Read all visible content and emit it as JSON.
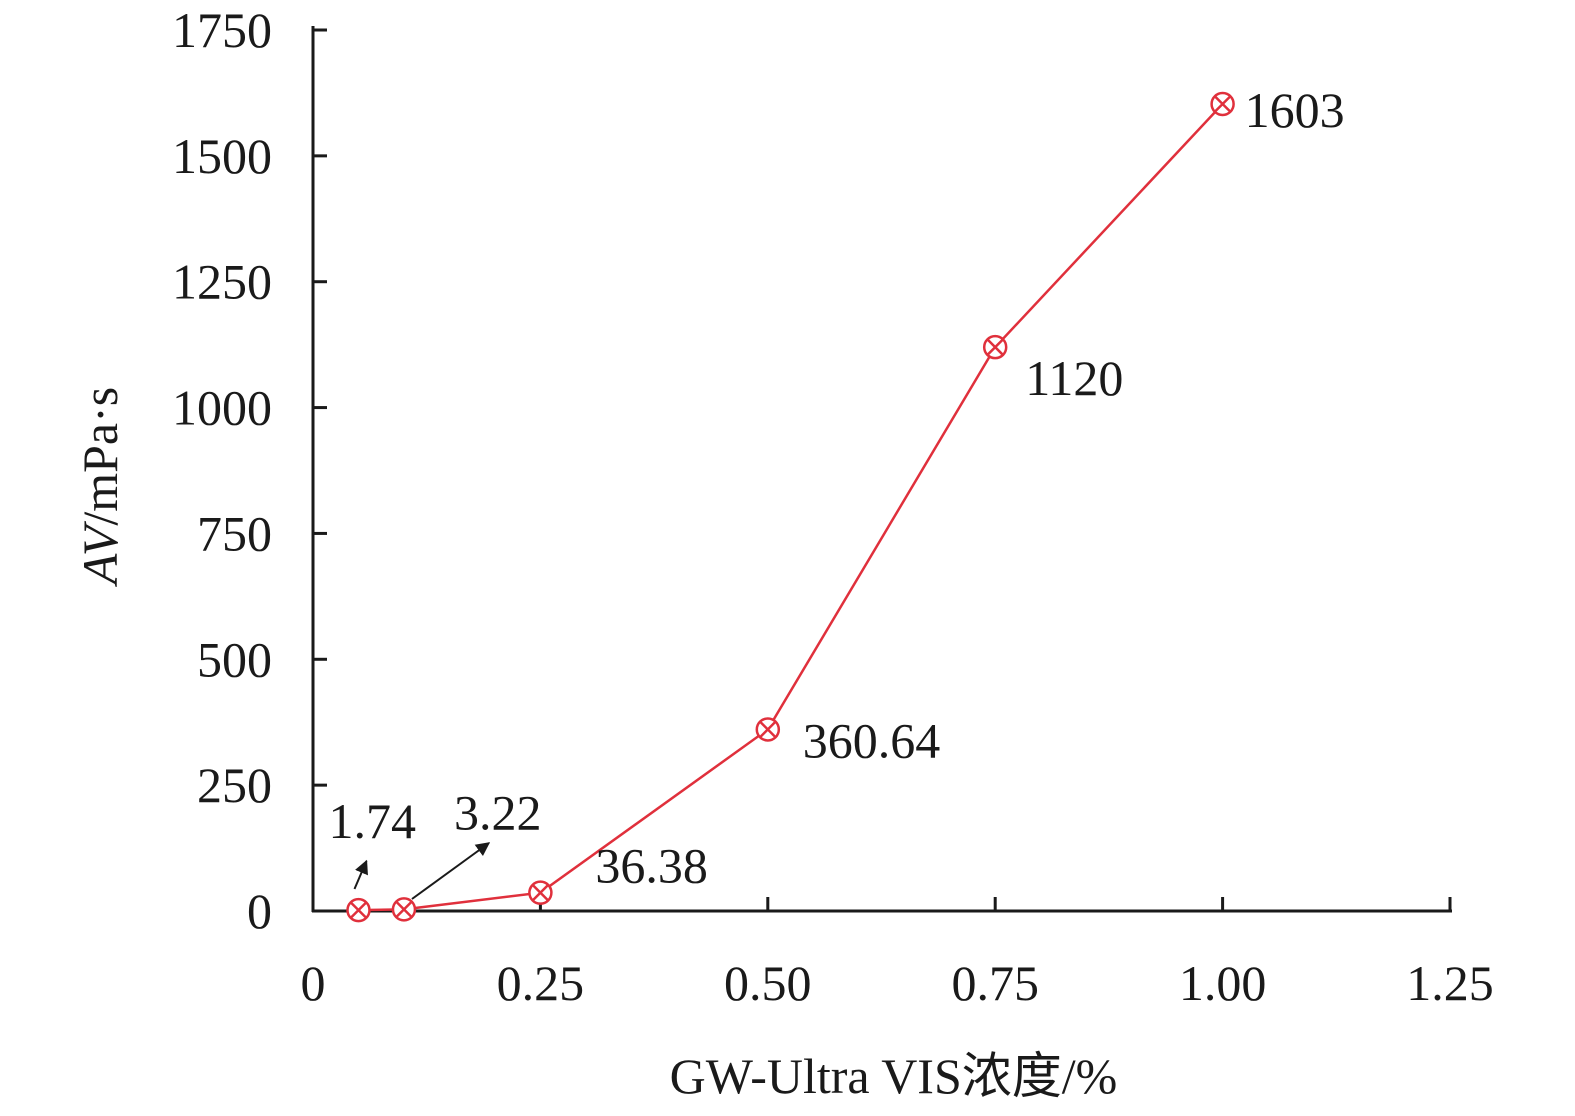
{
  "chart_data": {
    "type": "line",
    "x": [
      0.05,
      0.1,
      0.25,
      0.5,
      0.75,
      1.0
    ],
    "series": [
      {
        "values": [
          1.74,
          3.22,
          36.38,
          360.64,
          1120,
          1603
        ],
        "color": "#e0303c",
        "marker": "circle-x"
      }
    ],
    "data_labels": [
      "1.74",
      "3.22",
      "36.38",
      "360.64",
      "1120",
      "1603"
    ],
    "xlabel": "GW-Ultra VIS浓度/%",
    "ylabel_italic": "AV",
    "ylabel_rest": "/mPa·s",
    "xlim": [
      0,
      1.25
    ],
    "ylim": [
      0,
      1750
    ],
    "x_ticks": [
      "0",
      "0.25",
      "0.50",
      "0.75",
      "1.00",
      "1.25"
    ],
    "x_tick_values": [
      0,
      0.25,
      0.5,
      0.75,
      1.0,
      1.25
    ],
    "y_ticks": [
      "0",
      "250",
      "500",
      "750",
      "1000",
      "1250",
      "1500",
      "1750"
    ],
    "y_tick_values": [
      0,
      250,
      500,
      750,
      1000,
      1250,
      1500,
      1750
    ],
    "grid": false,
    "legend": "none",
    "axis_color": "#1a1a1a"
  }
}
